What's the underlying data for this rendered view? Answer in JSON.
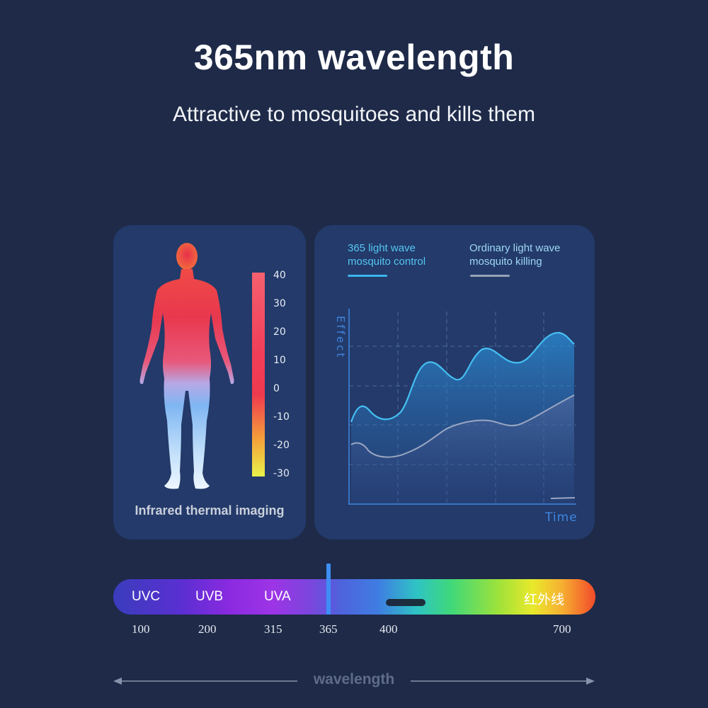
{
  "header": {
    "title": "365nm wavelength",
    "subtitle": "Attractive to mosquitoes and kills them"
  },
  "thermal_panel": {
    "caption": "Infrared thermal imaging",
    "scale_labels": [
      "40",
      "30",
      "20",
      "10",
      "0",
      "-10",
      "-20",
      "-30"
    ],
    "scale_colors": {
      "top": "#f4606e",
      "middle": "#ef3a4e",
      "bottom": "#e9f24a"
    }
  },
  "chart_panel": {
    "legend": [
      {
        "line1": "365 light wave",
        "line2": "mosquito control",
        "color": "#3ab5ef"
      },
      {
        "line1": "Ordinary light wave",
        "line2": "mosquito killing",
        "color": "#98a3b8"
      }
    ],
    "y_axis_label": "Effect",
    "x_axis_label": "Time"
  },
  "spectrum": {
    "bands": [
      "UVC",
      "UVB",
      "UVA",
      "红外线"
    ],
    "ticks": [
      "100",
      "200",
      "315",
      "365",
      "400",
      "700"
    ],
    "highlight_color": "#3e8ef7",
    "axis_label": "wavelength"
  }
}
